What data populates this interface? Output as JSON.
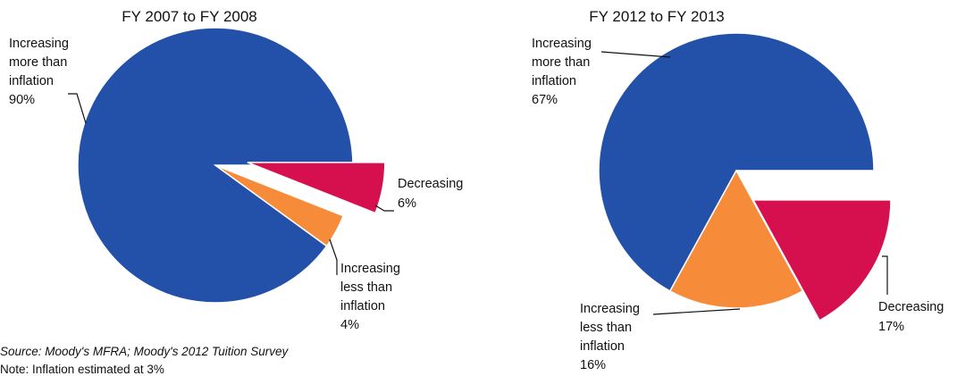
{
  "chart_data": [
    {
      "type": "pie",
      "title": "FY 2007 to FY 2008",
      "slices": [
        {
          "label": "Increasing more than inflation",
          "value": 90,
          "display": "90%",
          "color": "#2350A8",
          "exploded": false,
          "lines": [
            "Increasing",
            "more than",
            "inflation",
            "90%"
          ]
        },
        {
          "label": "Increasing less than inflation",
          "value": 4,
          "display": "4%",
          "color": "#F68C3A",
          "exploded": false,
          "lines": [
            "Increasing",
            "less than",
            "inflation",
            "4%"
          ]
        },
        {
          "label": "Decreasing",
          "value": 6,
          "display": "6%",
          "color": "#D6104E",
          "exploded": true,
          "lines": [
            "Decreasing",
            "6%"
          ]
        }
      ]
    },
    {
      "type": "pie",
      "title": "FY 2012 to FY 2013",
      "slices": [
        {
          "label": "Increasing more than inflation",
          "value": 67,
          "display": "67%",
          "color": "#2350A8",
          "exploded": false,
          "lines": [
            "Increasing",
            "more than",
            "inflation",
            "67%"
          ]
        },
        {
          "label": "Increasing less than inflation",
          "value": 16,
          "display": "16%",
          "color": "#F68C3A",
          "exploded": false,
          "lines": [
            "Increasing",
            "less than",
            "inflation",
            "16%"
          ]
        },
        {
          "label": "Decreasing",
          "value": 17,
          "display": "17%",
          "color": "#D6104E",
          "exploded": true,
          "lines": [
            "Decreasing",
            "17%"
          ]
        }
      ]
    }
  ],
  "notes": {
    "source": "Source: Moody's MFRA; Moody's 2012 Tuition Survey",
    "inflation": "Note: Inflation estimated at 3%"
  }
}
